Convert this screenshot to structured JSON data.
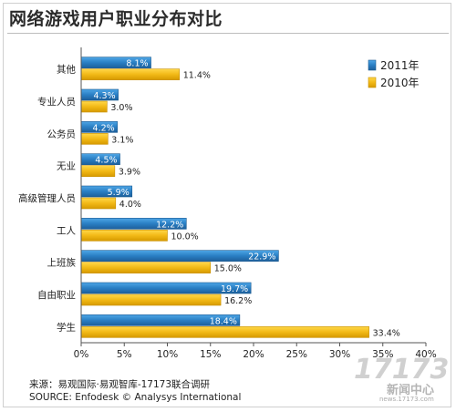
{
  "chart_data": {
    "type": "bar",
    "orientation": "horizontal",
    "title": "网络游戏用户职业分布对比",
    "categories": [
      "其他",
      "专业人员",
      "公务员",
      "无业",
      "高级管理人员",
      "工人",
      "上班族",
      "自由职业",
      "学生"
    ],
    "series": [
      {
        "name": "2011年",
        "values": [
          8.1,
          4.3,
          4.2,
          4.5,
          5.9,
          12.2,
          22.9,
          19.7,
          18.4
        ],
        "color": "#2a7fc4"
      },
      {
        "name": "2010年",
        "values": [
          11.4,
          3.0,
          3.1,
          3.9,
          4.0,
          10.0,
          15.0,
          16.2,
          33.4
        ],
        "color": "#f2b916"
      }
    ],
    "xlim": [
      0,
      40
    ],
    "xticks": [
      "0%",
      "5%",
      "10%",
      "15%",
      "20%",
      "25%",
      "30%",
      "35%",
      "40%"
    ],
    "value_suffix": "%",
    "legend_position": "top-right",
    "grid": false
  },
  "source": {
    "line1": "来源：易观国际·易观智库-17173联合调研",
    "line2": "SOURCE: Enfodesk © Analysys International"
  },
  "watermark": {
    "number": "17173",
    "text": "新闻中心",
    "url": "news.17173.com"
  }
}
